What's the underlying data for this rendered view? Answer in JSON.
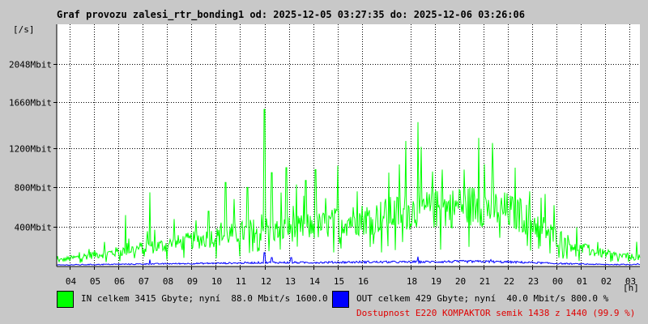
{
  "chart_data": {
    "type": "line",
    "title": "Graf provozu zalesi_rtr_bonding1 od: 2025-12-05 03:27:35 do: 2025-12-06 03:26:06",
    "ylabel": "[/s]",
    "xlabel": "[h]",
    "y_unit_label": "[/s]",
    "x_unit_label": "[h]",
    "ylim_mbit": [
      0,
      2450
    ],
    "y_ticks": [
      {
        "value": 400,
        "label": "400Mbit"
      },
      {
        "value": 800,
        "label": "800Mbit"
      },
      {
        "value": 1200,
        "label": "1200Mbit"
      },
      {
        "value": 1660,
        "label": "1660Mbit"
      },
      {
        "value": 2048,
        "label": "2048Mbit"
      }
    ],
    "x_range_hours": [
      3.46,
      27.43
    ],
    "x_ticks": [
      {
        "hour": 4,
        "label": "04"
      },
      {
        "hour": 5,
        "label": "05"
      },
      {
        "hour": 6,
        "label": "06"
      },
      {
        "hour": 7,
        "label": "07"
      },
      {
        "hour": 8,
        "label": "08"
      },
      {
        "hour": 9,
        "label": "09"
      },
      {
        "hour": 10,
        "label": "10"
      },
      {
        "hour": 11,
        "label": "11"
      },
      {
        "hour": 12,
        "label": "12"
      },
      {
        "hour": 13,
        "label": "13"
      },
      {
        "hour": 14,
        "label": "14"
      },
      {
        "hour": 15,
        "label": "15"
      },
      {
        "hour": 16,
        "label": "16"
      },
      {
        "hour": 18,
        "label": "18"
      },
      {
        "hour": 19,
        "label": "19"
      },
      {
        "hour": 20,
        "label": "20"
      },
      {
        "hour": 21,
        "label": "21"
      },
      {
        "hour": 22,
        "label": "22"
      },
      {
        "hour": 23,
        "label": "23"
      },
      {
        "hour": 24,
        "label": "00"
      },
      {
        "hour": 25,
        "label": "01"
      },
      {
        "hour": 26,
        "label": "02"
      },
      {
        "hour": 27,
        "label": "03"
      }
    ],
    "grid": true,
    "series": [
      {
        "name": "IN",
        "color": "#00ff00",
        "x_hours": [
          3.5,
          4,
          4.5,
          5,
          5.5,
          6,
          6.5,
          7,
          7.5,
          8,
          8.5,
          9,
          9.5,
          10,
          10.5,
          11,
          11.5,
          12,
          12.5,
          13,
          13.5,
          14,
          14.5,
          15,
          15.5,
          16,
          16.5,
          17,
          17.5,
          18,
          18.5,
          19,
          19.5,
          20,
          20.5,
          21,
          21.5,
          22,
          22.5,
          23,
          23.5,
          24,
          24.5,
          25,
          25.5,
          26,
          26.5,
          27,
          27.4
        ],
        "y_mbit": [
          60,
          80,
          100,
          120,
          130,
          150,
          170,
          190,
          200,
          220,
          240,
          260,
          280,
          300,
          320,
          340,
          360,
          380,
          360,
          380,
          390,
          400,
          420,
          450,
          470,
          480,
          490,
          520,
          540,
          560,
          570,
          580,
          590,
          600,
          620,
          610,
          580,
          560,
          520,
          450,
          380,
          300,
          240,
          180,
          150,
          130,
          110,
          100,
          90
        ],
        "spikes": [
          {
            "x": 6.3,
            "y": 520
          },
          {
            "x": 7.3,
            "y": 750
          },
          {
            "x": 8.3,
            "y": 480
          },
          {
            "x": 9.7,
            "y": 560
          },
          {
            "x": 10.4,
            "y": 850
          },
          {
            "x": 11.3,
            "y": 800
          },
          {
            "x": 12.0,
            "y": 1590
          },
          {
            "x": 12.3,
            "y": 950
          },
          {
            "x": 12.9,
            "y": 1000
          },
          {
            "x": 13.7,
            "y": 870
          },
          {
            "x": 14.1,
            "y": 980
          },
          {
            "x": 15.0,
            "y": 1020
          },
          {
            "x": 15.8,
            "y": 760
          },
          {
            "x": 17.1,
            "y": 950
          },
          {
            "x": 17.8,
            "y": 1270
          },
          {
            "x": 18.3,
            "y": 1460
          },
          {
            "x": 18.9,
            "y": 960
          },
          {
            "x": 19.3,
            "y": 980
          },
          {
            "x": 20.2,
            "y": 980
          },
          {
            "x": 20.8,
            "y": 1300
          },
          {
            "x": 21.4,
            "y": 960
          },
          {
            "x": 22.3,
            "y": 1000
          },
          {
            "x": 22.9,
            "y": 760
          },
          {
            "x": 23.9,
            "y": 620
          },
          {
            "x": 27.3,
            "y": 250
          }
        ]
      },
      {
        "name": "OUT",
        "color": "#0000ff",
        "x_hours": [
          3.5,
          5,
          7,
          9,
          11,
          12,
          14,
          16,
          18,
          20,
          21,
          22,
          23,
          24,
          25,
          26,
          27,
          27.4
        ],
        "y_mbit": [
          15,
          20,
          25,
          30,
          35,
          40,
          40,
          45,
          45,
          50,
          50,
          45,
          40,
          30,
          25,
          20,
          20,
          25
        ],
        "spikes": [
          {
            "x": 7.3,
            "y": 70
          },
          {
            "x": 12.0,
            "y": 140
          },
          {
            "x": 12.3,
            "y": 90
          },
          {
            "x": 13.1,
            "y": 90
          },
          {
            "x": 18.3,
            "y": 100
          },
          {
            "x": 21.3,
            "y": 70
          }
        ]
      }
    ]
  },
  "legend": {
    "in": {
      "color": "#00ff00",
      "text": "IN celkem 3415 Gbyte; nyní  88.0 Mbit/s 1600.0 %"
    },
    "out": {
      "color": "#0000ff",
      "text": "OUT celkem 429 Gbyte; nyní  40.0 Mbit/s 800.0 %"
    }
  },
  "availability": "Dostupnost E220 KOMPAKTOR semik 1438 z 1440 (99.9 %)"
}
